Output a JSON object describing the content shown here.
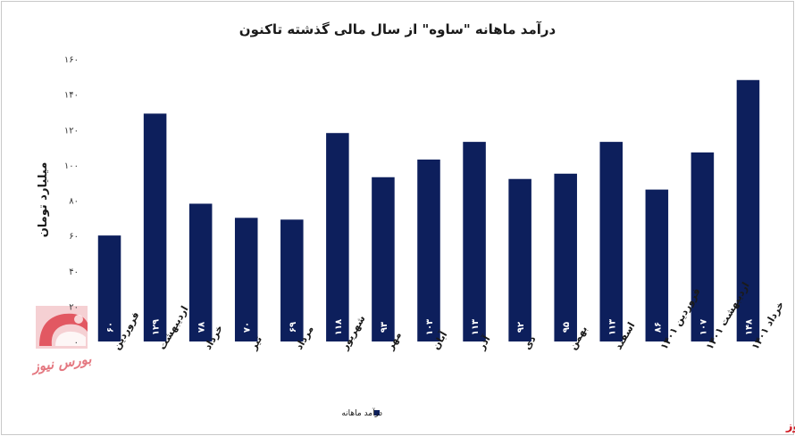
{
  "chart_data": {
    "type": "bar",
    "title": "درآمد ماهانه \"ساوه\" از سال مالی گذشته تاکنون",
    "ylabel": "میلیارد تومان",
    "xlabel": "",
    "ylim": [
      0,
      160
    ],
    "yticks": [
      0,
      20,
      40,
      60,
      80,
      100,
      120,
      140,
      160
    ],
    "ytick_labels": [
      "۰",
      "۲۰",
      "۴۰",
      "۶۰",
      "۸۰",
      "۱۰۰",
      "۱۲۰",
      "۱۴۰",
      "۱۶۰"
    ],
    "grid": false,
    "legend_position": "bottom",
    "categories": [
      "فروردین",
      "اردیبهشت",
      "خرداد",
      "تیر",
      "مرداد",
      "شهریور",
      "مهر",
      "آبان",
      "آذر",
      "دی",
      "بهمن",
      "اسفند",
      "فروردین ۱۴۰۱",
      "اردیبهشت ۱۴۰۱",
      "خرداد ۱۴۰۱"
    ],
    "series": [
      {
        "name": "درآمد ماهانه",
        "color": "#0d1f5c",
        "values": [
          60,
          129,
          78,
          70,
          69,
          118,
          93,
          103,
          113,
          92,
          95,
          113,
          86,
          107,
          148
        ],
        "labels": [
          "۶۰",
          "۱۲۹",
          "۷۸",
          "۷۰",
          "۶۹",
          "۱۱۸",
          "۹۳",
          "۱۰۳",
          "۱۱۳",
          "۹۲",
          "۹۵",
          "۱۱۳",
          "۸۶",
          "۱۰۷",
          "۱۴۸"
        ]
      }
    ]
  },
  "watermark": {
    "brand": "بورس نیوز",
    "logo_text": "بورس نیوز",
    "logo_color": "#d0131b"
  }
}
